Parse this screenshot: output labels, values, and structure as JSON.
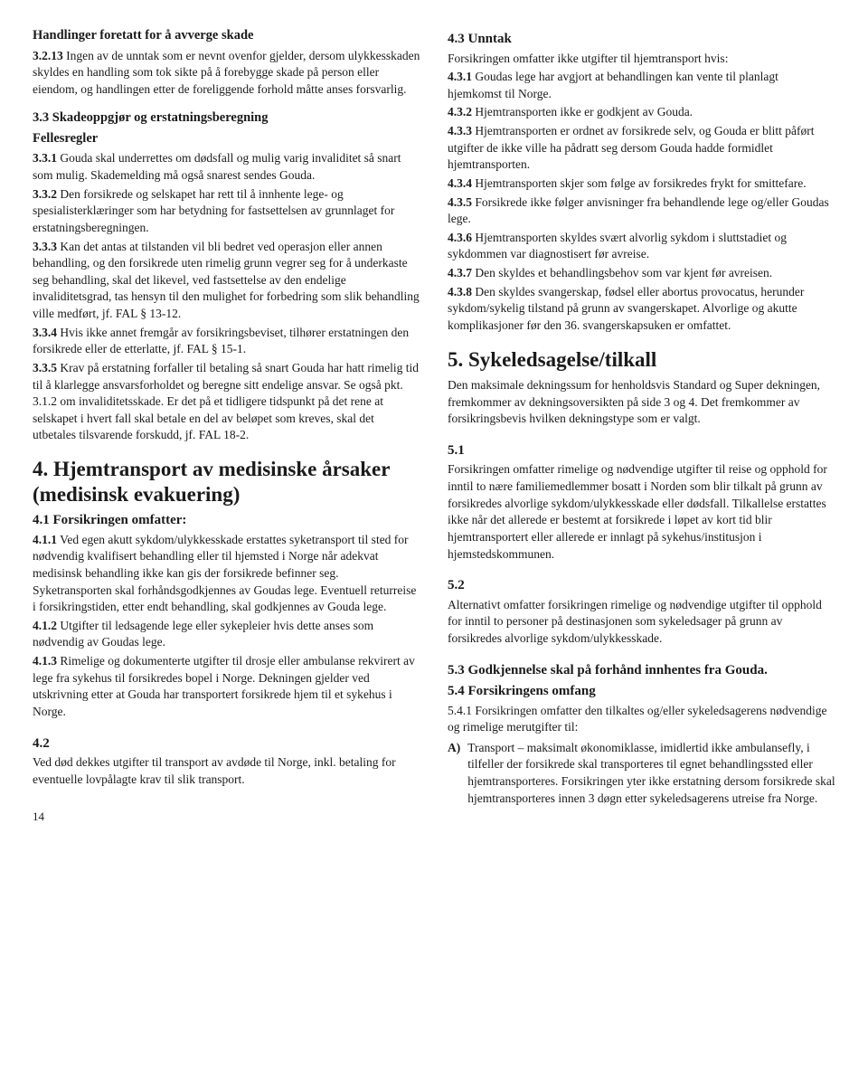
{
  "left": {
    "h1": "Handlinger foretatt for å avverge skade",
    "p1": "<b>3.2.13</b> Ingen av de unntak som er nevnt ovenfor gjelder, dersom ulykkesskaden skyldes en handling som tok sikte på å forebygge skade på person eller eiendom, og handlingen etter de foreliggende forhold måtte anses forsvarlig.",
    "h2": "3.3 Skadeoppgjør og erstatningsberegning",
    "h2b": "Fellesregler",
    "p331": "<b>3.3.1</b> Gouda skal underrettes om dødsfall og mulig varig invaliditet så snart som mulig. Skademelding må også snarest sendes Gouda.",
    "p332": "<b>3.3.2</b> Den forsikrede og selskapet har rett til å innhente lege- og spesialisterklæringer som har betydning for fastsettelsen av grunnlaget for erstatningsberegningen.",
    "p333": "<b>3.3.3</b> Kan det antas at tilstanden vil bli bedret ved operasjon eller annen behandling, og den forsikrede uten rimelig grunn vegrer seg for å underkaste seg behandling, skal det likevel, ved fastsettelse av den endelige invaliditetsgrad, tas hensyn til den mulighet for forbedring som slik behandling ville medført, jf. FAL § 13-12.",
    "p334": "<b>3.3.4</b> Hvis ikke annet fremgår av forsikringsbeviset, tilhører erstatningen den forsikrede eller de etterlatte, jf. FAL § 15-1.",
    "p335": "<b>3.3.5</b> Krav på erstatning forfaller til betaling så snart Gouda har hatt rimelig tid til å klarlegge ansvarsforholdet og beregne sitt endelige ansvar. Se også pkt. 3.1.2 om invaliditetsskade. Er det på et tidligere tidspunkt på det rene at selskapet i hvert fall skal betale en del av beløpet som kreves, skal det utbetales tilsvarende forskudd, jf. FAL 18-2.",
    "sec4": "4. Hjemtransport av medisinske årsaker (medisinsk evakuering)",
    "h41": "4.1 Forsikringen omfatter:",
    "p411": "<b>4.1.1</b> Ved egen akutt sykdom/ulykkesskade erstattes syketransport til sted for nødvendig kvalifisert behandling eller til hjemsted i Norge når adekvat medisinsk behandling ikke kan gis der forsikrede befinner seg. Syketransporten skal forhåndsgodkjennes av Goudas lege. Eventuell returreise i forsikringstiden, etter endt behandling, skal godkjennes av Gouda lege.",
    "p412": "<b>4.1.2</b> Utgifter til ledsagende lege eller sykepleier hvis dette anses som nødvendig av Goudas lege.",
    "p413": "<b>4.1.3</b> Rimelige og dokumenterte utgifter til drosje eller ambulanse rekvirert av lege fra sykehus til forsikredes bopel i Norge. Dekningen gjelder ved utskrivning etter at Gouda har transportert forsikrede hjem til et sykehus i Norge.",
    "h42": "4.2",
    "p42": "Ved død dekkes utgifter til transport av avdøde til Norge, inkl. betaling for eventuelle lovpålagte krav til slik transport.",
    "pagenum": "14"
  },
  "right": {
    "h43": "4.3 Unntak",
    "p430": "Forsikringen omfatter ikke utgifter til hjemtransport hvis:",
    "p431": "<b>4.3.1</b> Goudas lege har avgjort at behandlingen kan vente til planlagt hjemkomst til Norge.",
    "p432": "<b>4.3.2</b> Hjemtransporten ikke er godkjent av Gouda.",
    "p433": "<b>4.3.3</b> Hjemtransporten er ordnet av forsikrede selv, og Gouda er blitt påført utgifter de ikke ville ha pådratt seg dersom Gouda hadde formidlet hjemtransporten.",
    "p434": "<b>4.3.4</b> Hjemtransporten skjer som følge av forsikredes frykt for smittefare.",
    "p435": "<b>4.3.5</b> Forsikrede ikke følger anvisninger fra behandlende lege og/eller Goudas lege.",
    "p436": "<b>4.3.6</b> Hjemtransporten skyldes svært alvorlig sykdom i sluttstadiet og sykdommen var diagnostisert før avreise.",
    "p437": "<b>4.3.7</b> Den skyldes et behandlingsbehov som var kjent før avreisen.",
    "p438": "<b>4.3.8</b> Den skyldes svangerskap, fødsel eller abortus provocatus, herunder sykdom/sykelig tilstand på grunn av svangerskapet. Alvorlige og akutte komplikasjoner før den 36. svangerskapsuken er omfattet.",
    "sec5": "5. Sykeledsagelse/tilkall",
    "p5intro": "Den maksimale dekningssum for henholdsvis Standard og Super dekningen, fremkommer av dekningsoversikten på side 3 og 4. Det fremkommer av forsikringsbevis hvilken dekningstype som er valgt.",
    "h51": "5.1",
    "p51": "Forsikringen omfatter rimelige og nødvendige utgifter til reise og opphold for inntil to nære familiemedlemmer bosatt i Norden som blir tilkalt på grunn av forsikredes alvorlige sykdom/ulykkesskade eller dødsfall. Tilkallelse erstattes ikke når det allerede er bestemt at forsikrede i løpet av kort tid blir hjemtransportert eller allerede er innlagt på sykehus/institusjon i hjemstedskommunen.",
    "h52": "5.2",
    "p52": "Alternativt omfatter forsikringen rimelige og nødvendige utgifter til opphold for inntil to personer på destinasjonen som sykeledsager på grunn av forsikredes alvorlige sykdom/ulykkesskade.",
    "h53": "5.3 Godkjennelse skal på forhånd innhentes fra Gouda.",
    "h54": "5.4 Forsikringens omfang",
    "p541": "5.4.1 Forsikringen omfatter den tilkaltes og/eller sykeledsagerens nødvendige og rimelige merutgifter til:",
    "listA_marker": "A)",
    "listA": "Transport – maksimalt økonomiklasse, imidlertid ikke ambulansefly, i tilfeller der forsikrede skal transporteres til egnet behandlingssted eller hjemtransporteres. Forsikringen yter ikke erstatning dersom forsikrede skal hjemtransporteres innen 3 døgn etter sykeledsagerens utreise fra Norge."
  }
}
